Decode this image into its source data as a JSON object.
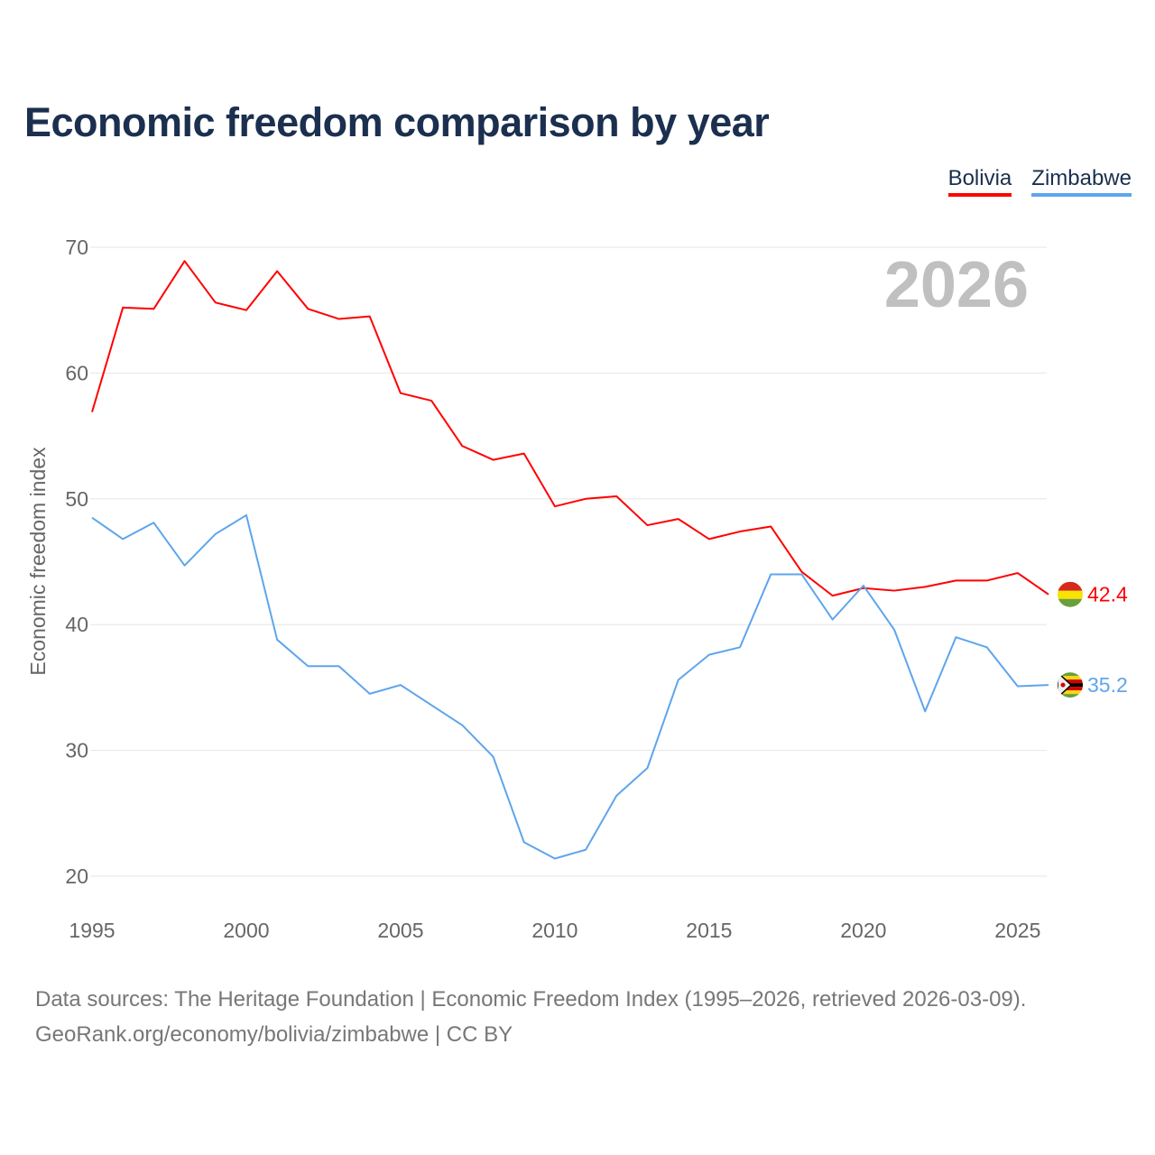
{
  "chart_data": {
    "type": "line",
    "title": "Economic freedom comparison by year",
    "ylabel": "Economic freedom index",
    "xlabel": "",
    "year_label": "2026",
    "x": [
      1995,
      1996,
      1997,
      1998,
      1999,
      2000,
      2001,
      2002,
      2003,
      2004,
      2005,
      2006,
      2007,
      2008,
      2009,
      2010,
      2011,
      2012,
      2013,
      2014,
      2015,
      2016,
      2017,
      2018,
      2019,
      2020,
      2021,
      2022,
      2023,
      2024,
      2025,
      2026
    ],
    "xlim": [
      1995,
      2026
    ],
    "ylim": [
      20,
      70
    ],
    "x_ticks": [
      "1995",
      "2000",
      "2005",
      "2010",
      "2015",
      "2020",
      "2025"
    ],
    "y_ticks": [
      "20",
      "30",
      "40",
      "50",
      "60",
      "70"
    ],
    "legend_position": "top-right",
    "series": [
      {
        "name": "Bolivia",
        "color": "#ff0000",
        "end_label": "42.4",
        "values": [
          56.9,
          65.2,
          65.1,
          68.9,
          65.6,
          65.0,
          68.1,
          65.1,
          64.3,
          64.5,
          58.4,
          57.8,
          54.2,
          53.1,
          53.6,
          49.4,
          50.0,
          50.2,
          47.9,
          48.4,
          46.8,
          47.4,
          47.8,
          44.2,
          42.3,
          42.9,
          42.7,
          43.0,
          43.5,
          43.5,
          44.1,
          42.4
        ]
      },
      {
        "name": "Zimbabwe",
        "color": "#5ea5ec",
        "end_label": "35.2",
        "values": [
          48.5,
          46.8,
          48.1,
          44.7,
          47.2,
          48.7,
          38.8,
          36.7,
          36.7,
          34.5,
          35.2,
          33.6,
          32.0,
          29.5,
          22.7,
          21.4,
          22.1,
          26.4,
          28.6,
          35.6,
          37.6,
          38.2,
          44.0,
          44.0,
          40.4,
          43.1,
          39.6,
          33.1,
          39.0,
          38.2,
          35.1,
          35.2
        ]
      }
    ]
  },
  "footer": {
    "line1": "Data sources: The Heritage Foundation | Economic Freedom Index (1995–2026, retrieved 2026-03-09).",
    "line2": "GeoRank.org/economy/bolivia/zimbabwe | CC BY"
  }
}
